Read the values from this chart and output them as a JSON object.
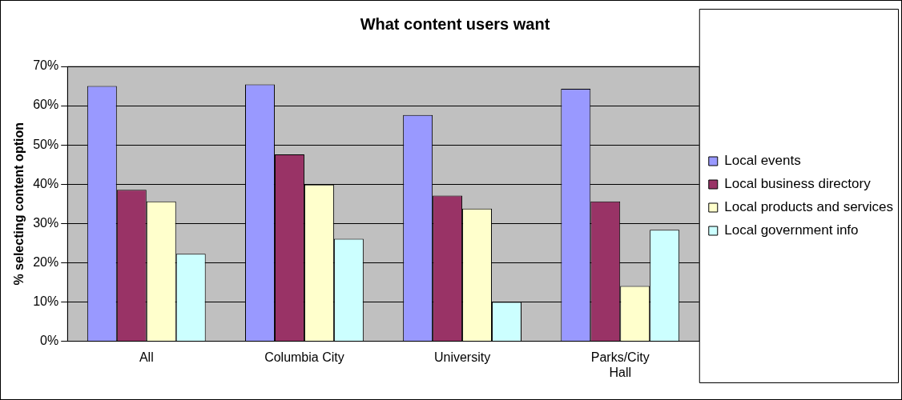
{
  "chart_data": {
    "type": "bar",
    "title": "What content users want",
    "ylabel": "% selecting content option",
    "categories": [
      "All",
      "Columbia City",
      "University",
      "Parks/City Hall"
    ],
    "series": [
      {
        "name": "Local events",
        "color": "#9999ff",
        "values": [
          65,
          65.4,
          57.6,
          64.3
        ]
      },
      {
        "name": "Local business directory",
        "color": "#993366",
        "values": [
          38.6,
          47.6,
          37.1,
          35.6
        ]
      },
      {
        "name": "Local products and services",
        "color": "#ffffcc",
        "values": [
          35.6,
          39.9,
          33.8,
          14.1
        ]
      },
      {
        "name": "Local government info",
        "color": "#ccffff",
        "values": [
          22.3,
          26.1,
          10,
          28.4
        ]
      }
    ],
    "ylim": [
      0,
      70
    ],
    "yticks": [
      {
        "value": 0,
        "label": "0%"
      },
      {
        "value": 10,
        "label": "10%"
      },
      {
        "value": 20,
        "label": "20%"
      },
      {
        "value": 30,
        "label": "30%"
      },
      {
        "value": 40,
        "label": "40%"
      },
      {
        "value": 50,
        "label": "50%"
      },
      {
        "value": 60,
        "label": "60%"
      },
      {
        "value": 70,
        "label": "70%"
      }
    ],
    "grid": "y",
    "legend": "right"
  }
}
